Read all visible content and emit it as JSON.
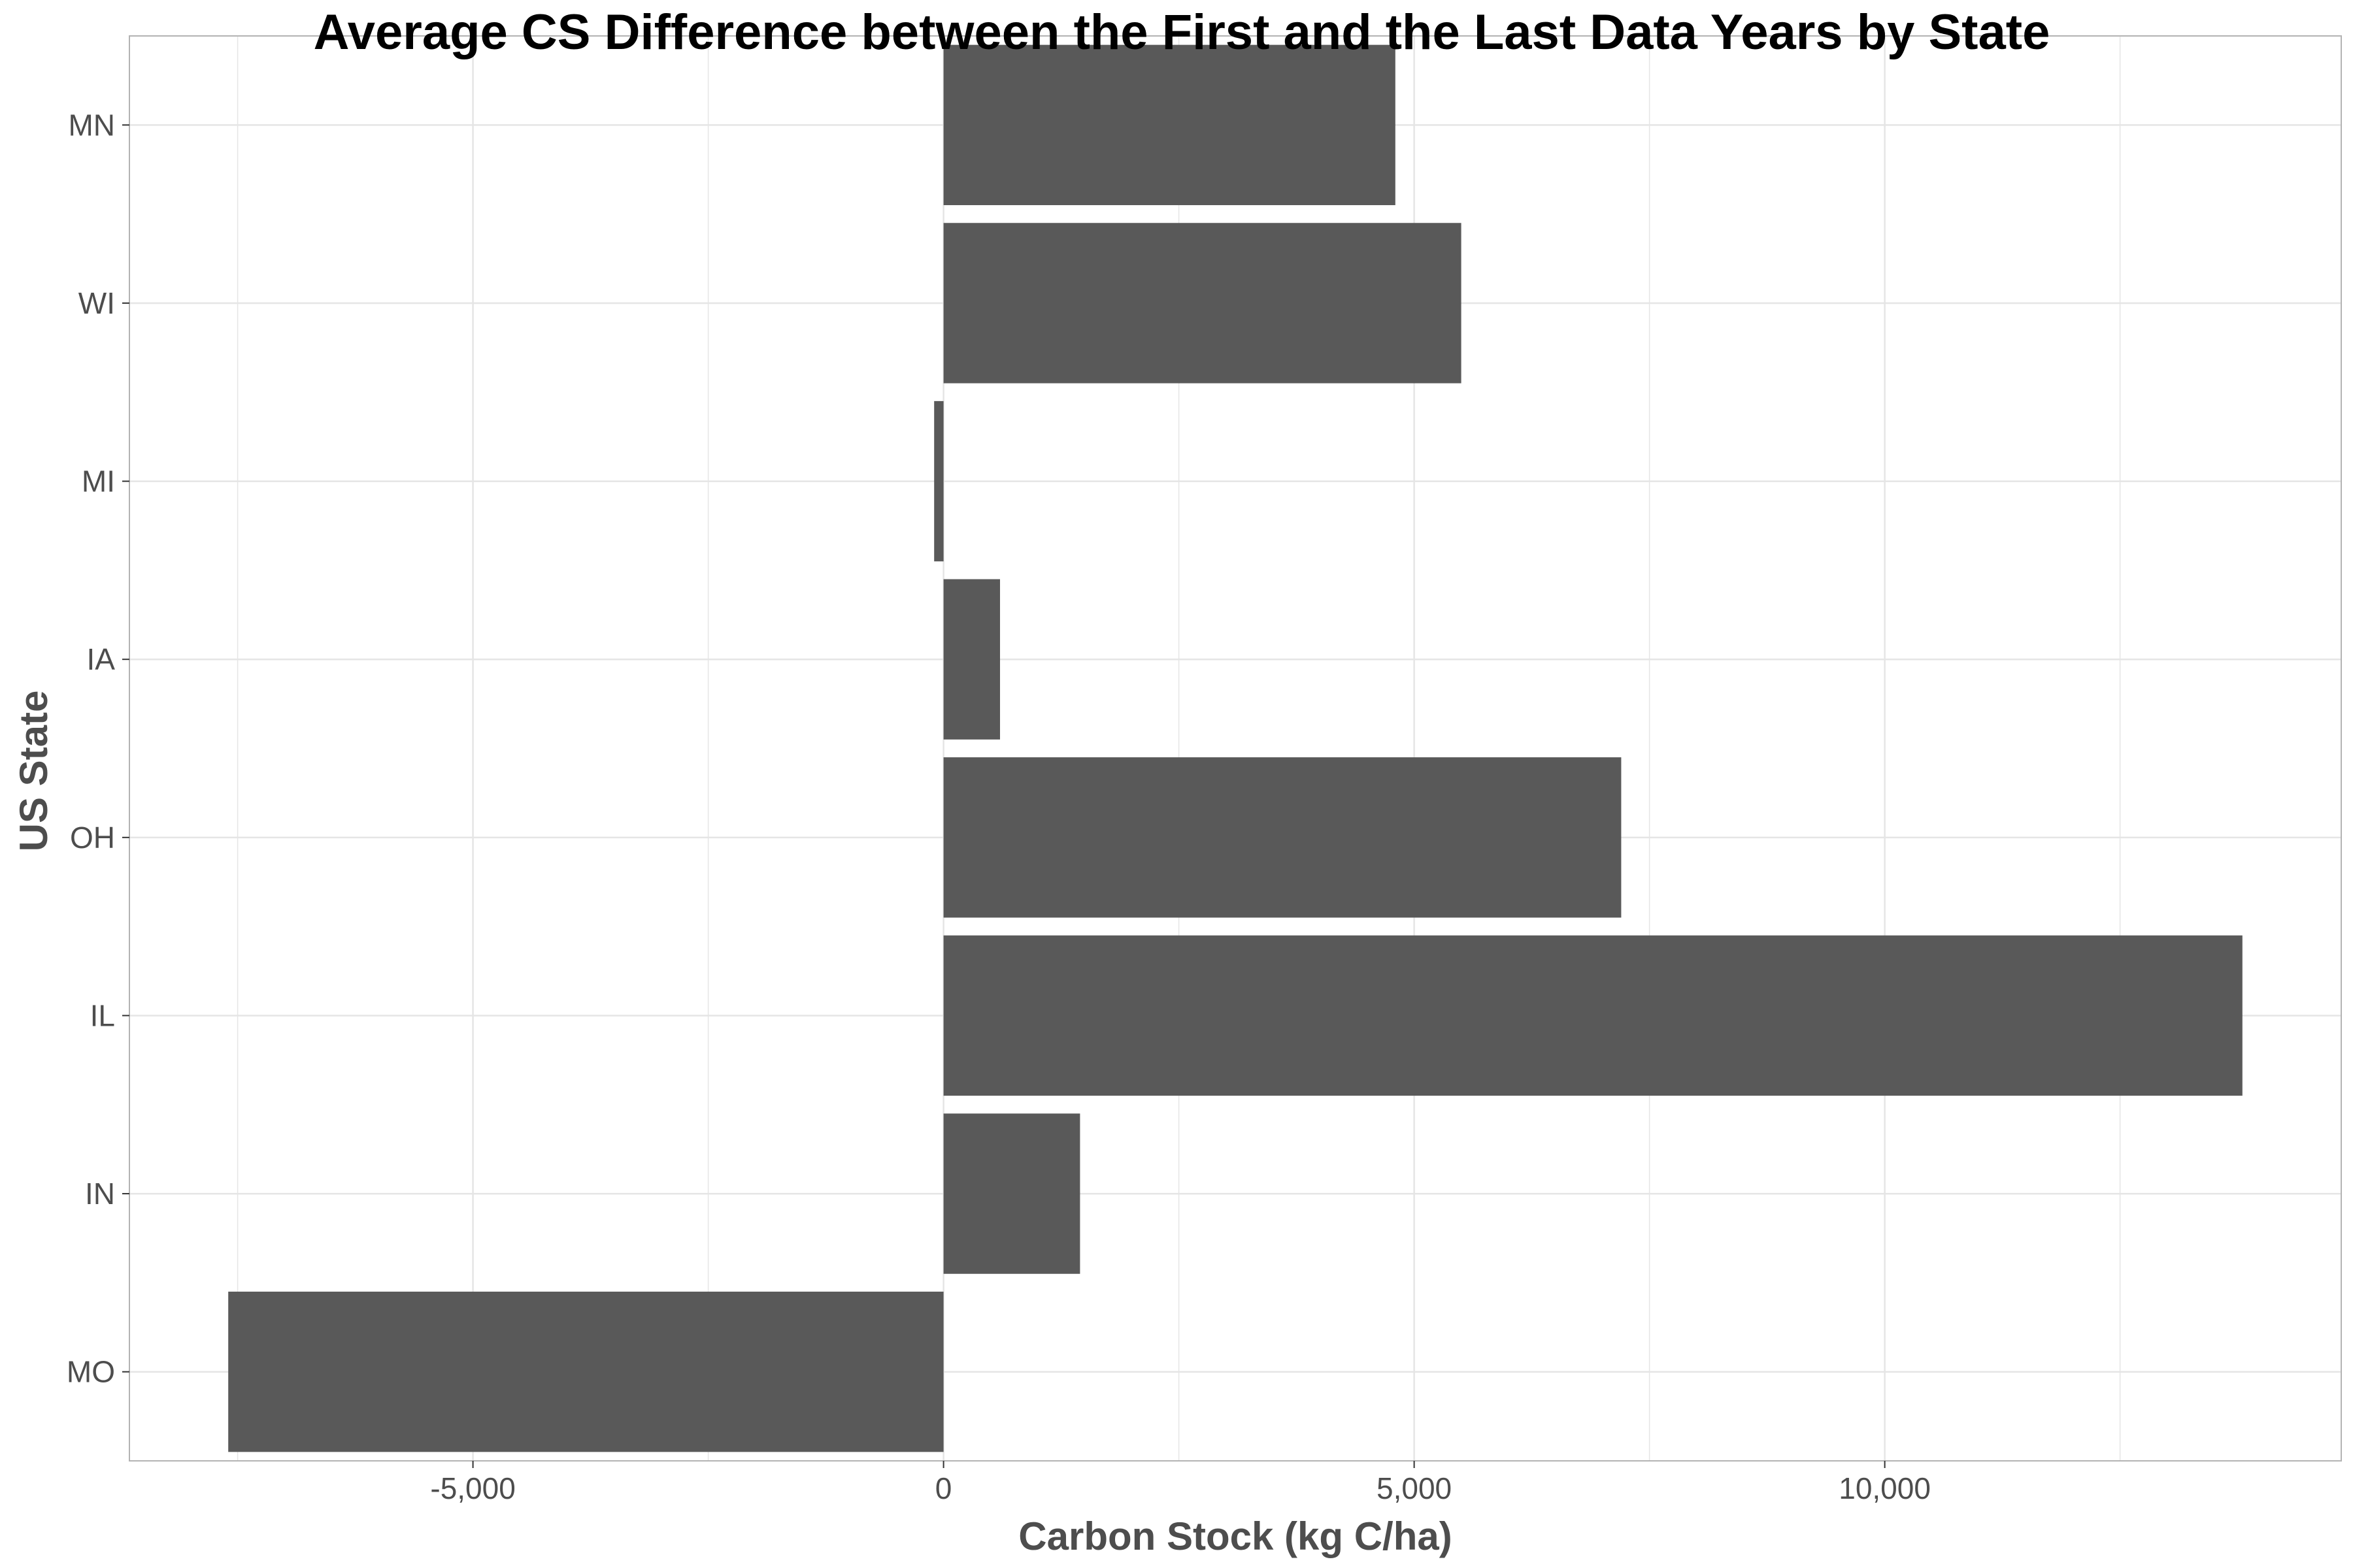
{
  "chart_data": {
    "type": "bar",
    "orientation": "horizontal",
    "title": "Average CS Difference between the First and the Last Data Years by State",
    "xlabel": "Carbon Stock (kg C/ha)",
    "ylabel": "US State",
    "categories": [
      "MN",
      "WI",
      "MI",
      "IA",
      "OH",
      "IL",
      "IN",
      "MO"
    ],
    "values": [
      4800,
      5500,
      -100,
      600,
      7200,
      13800,
      1450,
      -7600
    ],
    "xlim": [
      -8650,
      14850
    ],
    "x_ticks": [
      -5000,
      0,
      5000,
      10000
    ],
    "x_tick_labels": [
      "-5,000",
      "0",
      "5,000",
      "10,000"
    ],
    "x_minor_ticks": [
      -7500,
      -2500,
      2500,
      7500,
      12500
    ],
    "grid": true,
    "colors": {
      "bar": "#595959",
      "grid": "#e5e5e5",
      "panel_border": "#b3b3b3"
    }
  }
}
